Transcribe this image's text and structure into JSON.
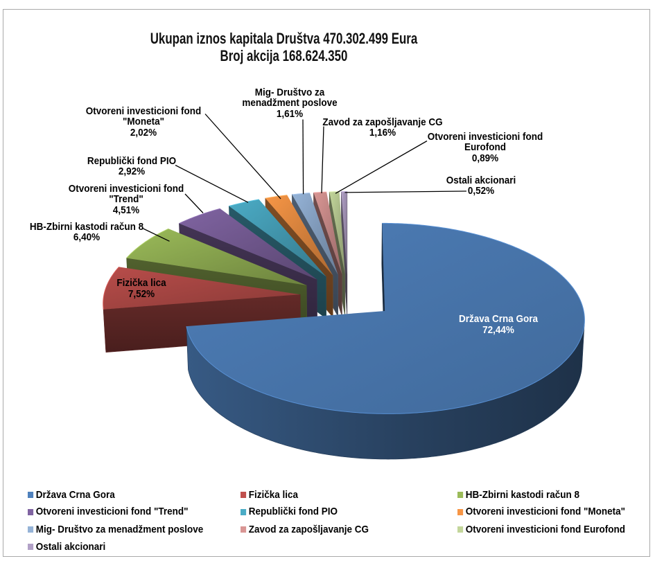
{
  "chart_data": {
    "type": "pie",
    "style": "3d-exploded-pie",
    "title_line1": "Ukupan iznos kapitala Društva 470.302.499 Eura",
    "title_line2": "Broj akcija 168.624.350",
    "legend_position": "bottom",
    "label_format": "name + percent",
    "series": [
      {
        "name": "Država Crna Gora",
        "value": 72.44,
        "pct_label": "72,44%",
        "color": "#4F81BD"
      },
      {
        "name": "Fizička lica",
        "value": 7.52,
        "pct_label": "7,52%",
        "color": "#C0504D"
      },
      {
        "name": "HB-Zbirni kastodi račun 8",
        "value": 6.4,
        "pct_label": "6,40%",
        "color": "#9BBB59"
      },
      {
        "name": "Otvoreni investicioni fond \"Trend\"",
        "value": 4.51,
        "pct_label": "4,51%",
        "color": "#8064A2"
      },
      {
        "name": "Republički fond PIO",
        "value": 2.92,
        "pct_label": "2,92%",
        "color": "#4BACC6"
      },
      {
        "name": "Otvoreni investicioni fond \"Moneta\"",
        "value": 2.02,
        "pct_label": "2,02%",
        "color": "#F79646"
      },
      {
        "name": "Mig- Društvo za menadžment poslove",
        "value": 1.61,
        "pct_label": "1,61%",
        "color": "#95B3D7"
      },
      {
        "name": "Zavod za zapošljavanje CG",
        "value": 1.16,
        "pct_label": "1,16%",
        "color": "#D99694"
      },
      {
        "name": "Otvoreni investicioni fond Eurofond",
        "value": 0.89,
        "pct_label": "0,89%",
        "color": "#C3D69B"
      },
      {
        "name": "Ostali akcionari",
        "value": 0.52,
        "pct_label": "0,52%",
        "color": "#B2A1C7"
      }
    ]
  }
}
